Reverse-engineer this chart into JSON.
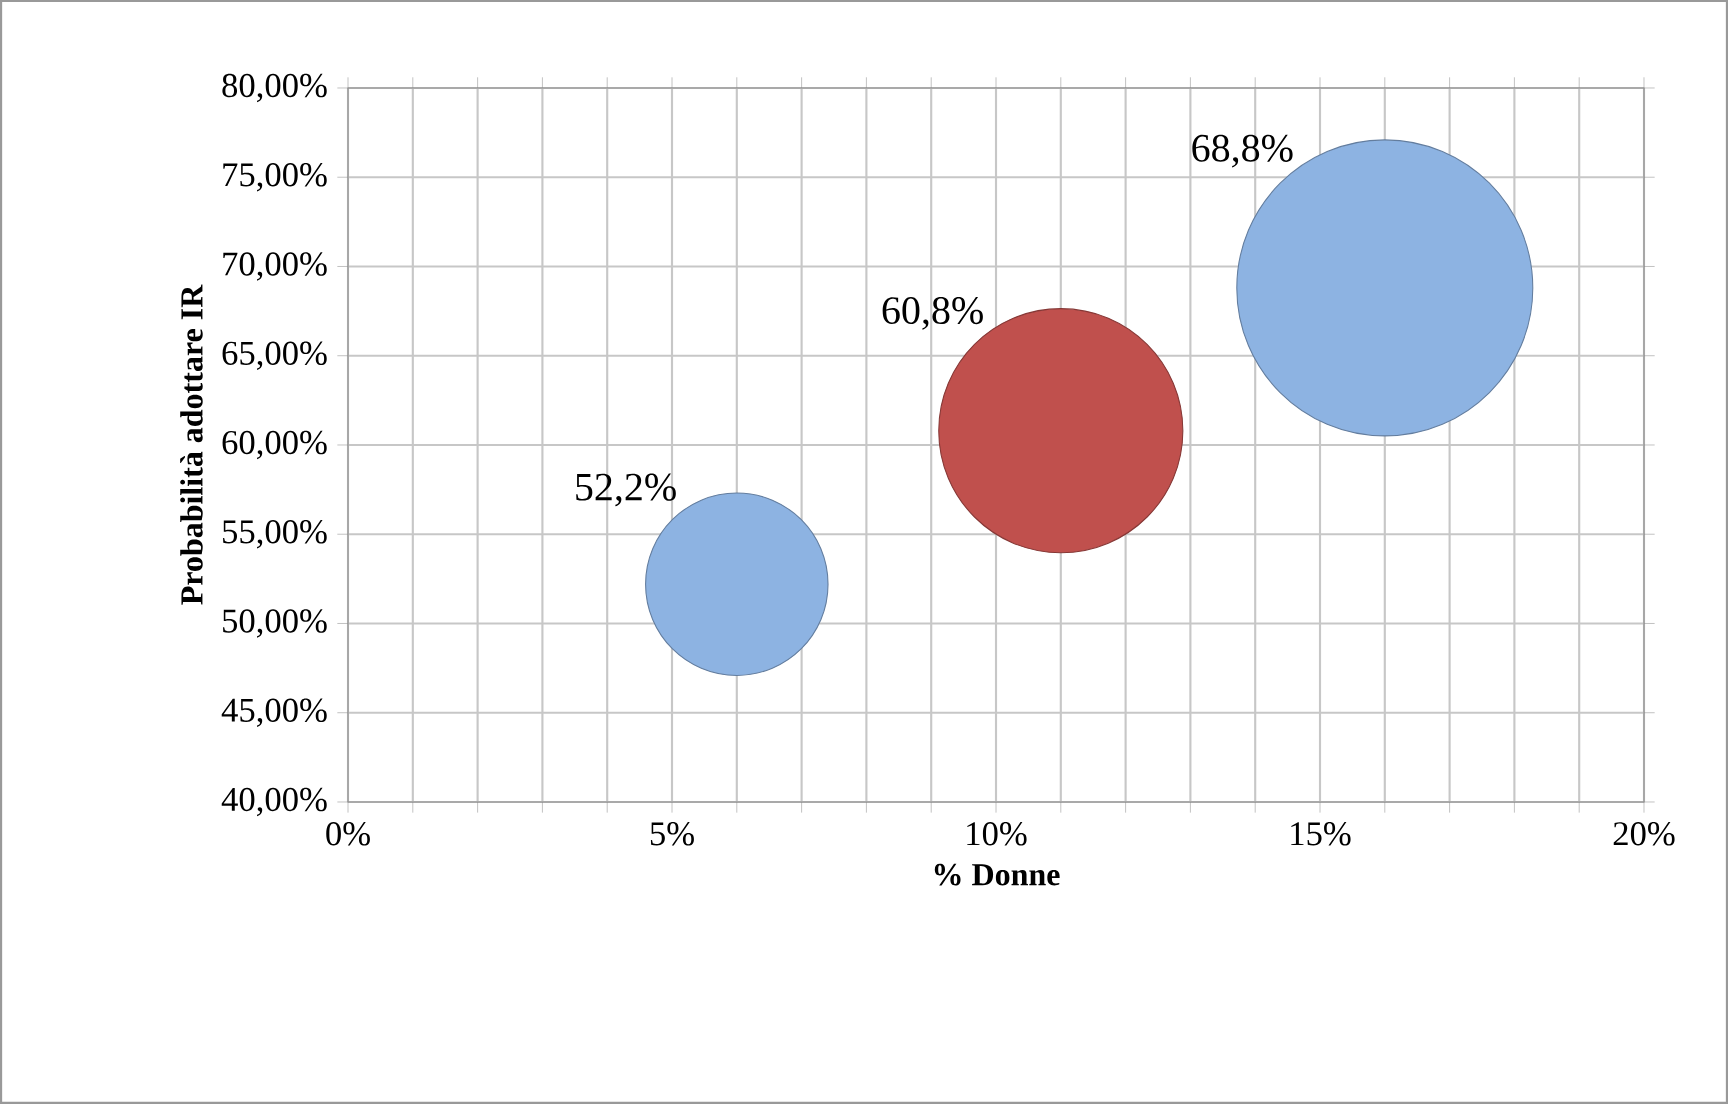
{
  "chart_data": {
    "type": "bubble",
    "xlabel": "% Donne",
    "ylabel": "Probabilità adottare IR",
    "x": [
      6,
      11,
      16
    ],
    "values": [
      52.2,
      60.8,
      68.8
    ],
    "sizes": [
      0.38,
      0.68,
      1
    ],
    "colors": [
      "#8db3e2",
      "#c0504d",
      "#8db3e2"
    ],
    "value_labels": [
      "52,2%",
      "60,8%",
      "68,8%"
    ],
    "xlim": [
      0,
      20
    ],
    "ylim": [
      40,
      80
    ],
    "xticks": [
      {
        "value": 0,
        "label": "0%"
      },
      {
        "value": 1,
        "label": null
      },
      {
        "value": 2,
        "label": null
      },
      {
        "value": 3,
        "label": null
      },
      {
        "value": 4,
        "label": null
      },
      {
        "value": 5,
        "label": "5%"
      },
      {
        "value": 6,
        "label": null
      },
      {
        "value": 7,
        "label": null
      },
      {
        "value": 8,
        "label": null
      },
      {
        "value": 9,
        "label": null
      },
      {
        "value": 10,
        "label": "10%"
      },
      {
        "value": 11,
        "label": null
      },
      {
        "value": 12,
        "label": null
      },
      {
        "value": 13,
        "label": null
      },
      {
        "value": 14,
        "label": null
      },
      {
        "value": 15,
        "label": "15%"
      },
      {
        "value": 16,
        "label": null
      },
      {
        "value": 17,
        "label": null
      },
      {
        "value": 18,
        "label": null
      },
      {
        "value": 19,
        "label": null
      },
      {
        "value": 20,
        "label": "20%"
      }
    ],
    "yticks": [
      {
        "value": 40,
        "label": "40,00%"
      },
      {
        "value": 45,
        "label": "45,00%"
      },
      {
        "value": 50,
        "label": "50,00%"
      },
      {
        "value": 55,
        "label": "55,00%"
      },
      {
        "value": 60,
        "label": "60,00%"
      },
      {
        "value": 65,
        "label": "65,00%"
      },
      {
        "value": 70,
        "label": "70,00%"
      },
      {
        "value": 75,
        "label": "75,00%"
      },
      {
        "value": 80,
        "label": "80,00%"
      }
    ],
    "grid": true
  }
}
